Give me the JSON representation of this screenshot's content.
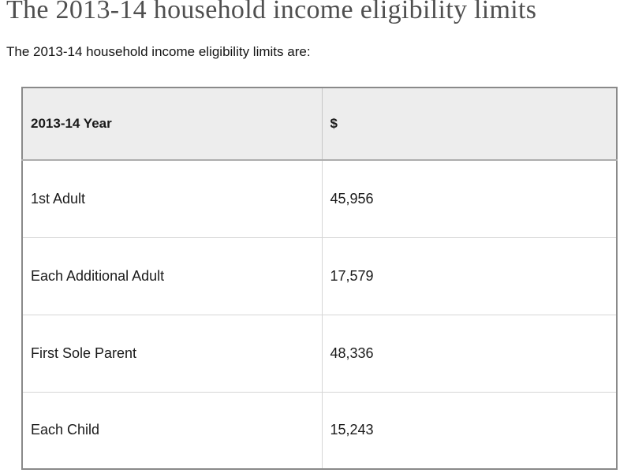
{
  "page": {
    "title": "The 2013-14 household income eligibility limits",
    "intro": "The 2013-14 household income eligibility limits are:"
  },
  "table": {
    "columns": [
      {
        "label": "2013-14 Year"
      },
      {
        "label": "$"
      }
    ],
    "rows": [
      {
        "label": "1st Adult",
        "value": "45,956"
      },
      {
        "label": "Each Additional Adult",
        "value": "17,579"
      },
      {
        "label": "First Sole Parent",
        "value": "48,336"
      },
      {
        "label": "Each Child",
        "value": "15,243"
      }
    ]
  },
  "colors": {
    "title_text": "#4f4f4f",
    "body_text": "#1a1a1a",
    "header_background": "#ededed",
    "outer_border": "#8a8a8a",
    "inner_border": "#d6d6d6"
  }
}
